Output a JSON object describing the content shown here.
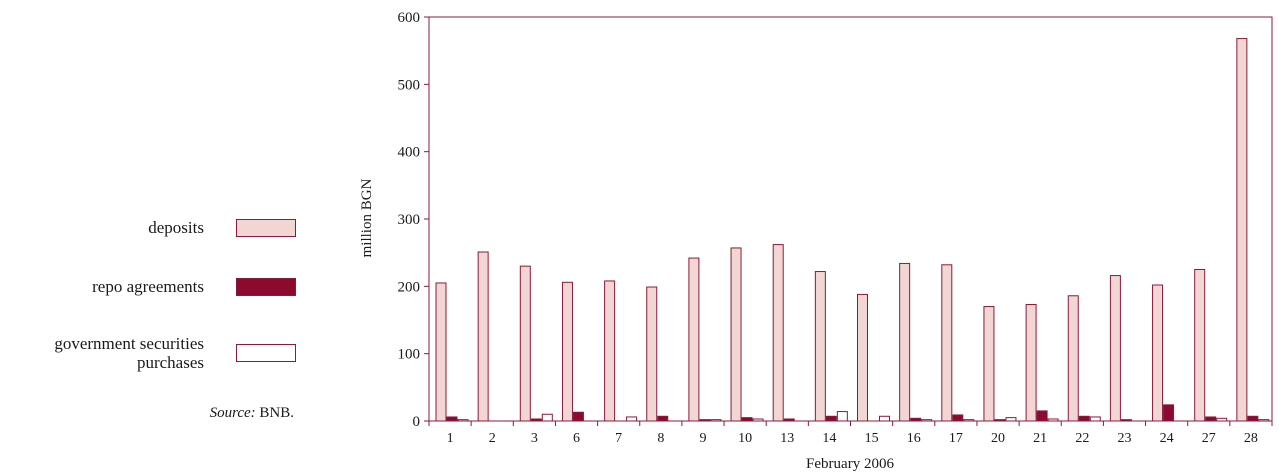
{
  "chart_data": {
    "type": "bar",
    "xlabel": "February 2006",
    "ylabel": "million BGN",
    "ylim": [
      0,
      600
    ],
    "yticks": [
      0,
      100,
      200,
      300,
      400,
      500,
      600
    ],
    "grid": false,
    "legend_position": "left",
    "categories": [
      "1",
      "2",
      "3",
      "6",
      "7",
      "8",
      "9",
      "10",
      "13",
      "14",
      "15",
      "16",
      "17",
      "20",
      "21",
      "22",
      "23",
      "24",
      "27",
      "28"
    ],
    "series": [
      {
        "name": "deposits",
        "color": "#f2d6d4",
        "values": [
          205,
          251,
          230,
          206,
          208,
          199,
          242,
          257,
          262,
          222,
          188,
          234,
          232,
          170,
          173,
          186,
          216,
          202,
          225,
          568
        ]
      },
      {
        "name": "repo agreements",
        "color": "#8b0a2e",
        "values": [
          6,
          0,
          3,
          13,
          0,
          7,
          2,
          5,
          3,
          7,
          0,
          4,
          9,
          2,
          15,
          7,
          2,
          24,
          6,
          7
        ]
      },
      {
        "name": "government securities purchases",
        "color": "#ffffff",
        "values": [
          2,
          0,
          10,
          0,
          6,
          0,
          2,
          3,
          0,
          14,
          7,
          2,
          2,
          5,
          3,
          6,
          0,
          0,
          4,
          2
        ]
      }
    ]
  },
  "legend": {
    "items": [
      {
        "label": "deposits",
        "color": "#f2d6d4"
      },
      {
        "label": "repo agreements",
        "color": "#8b0a2e"
      },
      {
        "label_line1": "government securities",
        "label_line2": "purchases",
        "color": "#ffffff"
      }
    ]
  },
  "source": {
    "prefix": "Source:",
    "text": "BNB."
  }
}
